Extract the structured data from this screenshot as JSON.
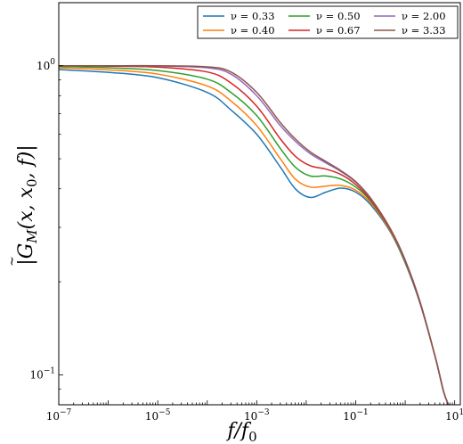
{
  "chart_data": {
    "type": "line",
    "xscale": "log",
    "yscale": "log",
    "xlim": [
      1e-07,
      13
    ],
    "ylim": [
      0.08,
      1.6
    ],
    "xlabel": "f/f_0",
    "ylabel": "|G̃_M(x, x_0, f)|",
    "x_ticks": [
      {
        "value": 1e-07,
        "mant": "10",
        "exp": "−7"
      },
      {
        "value": 1e-05,
        "mant": "10",
        "exp": "−5"
      },
      {
        "value": 0.001,
        "mant": "10",
        "exp": "−3"
      },
      {
        "value": 0.1,
        "mant": "10",
        "exp": "−1"
      },
      {
        "value": 10,
        "mant": "10",
        "exp": "1"
      }
    ],
    "y_ticks": [
      {
        "value": 1,
        "mant": "10",
        "exp": "0"
      },
      {
        "value": 0.1,
        "mant": "10",
        "exp": "−1"
      }
    ],
    "legend_position": "top-right",
    "grid": false,
    "series": [
      {
        "name": "ν = 0.33",
        "color": "#1f77b4",
        "points": [
          [
            1e-07,
            0.972
          ],
          [
            1e-06,
            0.952
          ],
          [
            1e-05,
            0.915
          ],
          [
            0.0001,
            0.82
          ],
          [
            0.0003,
            0.72
          ],
          [
            0.001,
            0.6
          ],
          [
            0.003,
            0.47
          ],
          [
            0.006,
            0.4
          ],
          [
            0.012,
            0.375
          ],
          [
            0.025,
            0.39
          ],
          [
            0.05,
            0.402
          ],
          [
            0.1,
            0.39
          ],
          [
            0.2,
            0.355
          ],
          [
            0.5,
            0.29
          ],
          [
            1,
            0.23
          ],
          [
            2,
            0.17
          ],
          [
            4,
            0.115
          ],
          [
            6,
            0.088
          ],
          [
            7.5,
            0.08
          ]
        ]
      },
      {
        "name": "ν = 0.40",
        "color": "#ff7f0e",
        "points": [
          [
            1e-07,
            0.985
          ],
          [
            1e-06,
            0.97
          ],
          [
            1e-05,
            0.94
          ],
          [
            0.0001,
            0.86
          ],
          [
            0.0003,
            0.77
          ],
          [
            0.001,
            0.64
          ],
          [
            0.003,
            0.5
          ],
          [
            0.006,
            0.43
          ],
          [
            0.012,
            0.405
          ],
          [
            0.025,
            0.408
          ],
          [
            0.05,
            0.41
          ],
          [
            0.1,
            0.396
          ],
          [
            0.2,
            0.36
          ],
          [
            0.5,
            0.292
          ],
          [
            1,
            0.232
          ],
          [
            2,
            0.171
          ],
          [
            4,
            0.115
          ],
          [
            6,
            0.088
          ],
          [
            7.5,
            0.08
          ]
        ]
      },
      {
        "name": "ν = 0.50",
        "color": "#2ca02c",
        "points": [
          [
            1e-07,
            0.995
          ],
          [
            1e-06,
            0.985
          ],
          [
            1e-05,
            0.965
          ],
          [
            0.0001,
            0.905
          ],
          [
            0.0003,
            0.82
          ],
          [
            0.001,
            0.69
          ],
          [
            0.003,
            0.54
          ],
          [
            0.006,
            0.47
          ],
          [
            0.012,
            0.44
          ],
          [
            0.025,
            0.44
          ],
          [
            0.05,
            0.43
          ],
          [
            0.1,
            0.405
          ],
          [
            0.2,
            0.365
          ],
          [
            0.5,
            0.294
          ],
          [
            1,
            0.233
          ],
          [
            2,
            0.171
          ],
          [
            4,
            0.115
          ],
          [
            6,
            0.088
          ],
          [
            7.5,
            0.08
          ]
        ]
      },
      {
        "name": "ν = 0.67",
        "color": "#d62728",
        "points": [
          [
            1e-07,
            1.0
          ],
          [
            1e-06,
            0.997
          ],
          [
            1e-05,
            0.99
          ],
          [
            0.0001,
            0.955
          ],
          [
            0.0003,
            0.88
          ],
          [
            0.001,
            0.74
          ],
          [
            0.003,
            0.58
          ],
          [
            0.006,
            0.51
          ],
          [
            0.012,
            0.475
          ],
          [
            0.025,
            0.463
          ],
          [
            0.05,
            0.445
          ],
          [
            0.1,
            0.413
          ],
          [
            0.2,
            0.368
          ],
          [
            0.5,
            0.295
          ],
          [
            1,
            0.234
          ],
          [
            2,
            0.171
          ],
          [
            4,
            0.115
          ],
          [
            6,
            0.088
          ],
          [
            7.5,
            0.08
          ]
        ]
      },
      {
        "name": "ν = 2.00",
        "color": "#9467bd",
        "points": [
          [
            1e-07,
            1.0
          ],
          [
            1e-06,
            1.0
          ],
          [
            1e-05,
            0.998
          ],
          [
            0.0001,
            0.985
          ],
          [
            0.0003,
            0.94
          ],
          [
            0.001,
            0.8
          ],
          [
            0.003,
            0.64
          ],
          [
            0.006,
            0.57
          ],
          [
            0.012,
            0.52
          ],
          [
            0.025,
            0.485
          ],
          [
            0.05,
            0.455
          ],
          [
            0.1,
            0.42
          ],
          [
            0.2,
            0.372
          ],
          [
            0.5,
            0.297
          ],
          [
            1,
            0.235
          ],
          [
            2,
            0.172
          ],
          [
            4,
            0.115
          ],
          [
            6,
            0.088
          ],
          [
            7.5,
            0.08
          ]
        ]
      },
      {
        "name": "ν = 3.33",
        "color": "#8c564b",
        "points": [
          [
            1e-07,
            1.0
          ],
          [
            1e-06,
            1.0
          ],
          [
            1e-05,
            1.0
          ],
          [
            0.0001,
            0.992
          ],
          [
            0.0003,
            0.955
          ],
          [
            0.001,
            0.82
          ],
          [
            0.003,
            0.655
          ],
          [
            0.006,
            0.58
          ],
          [
            0.012,
            0.527
          ],
          [
            0.025,
            0.49
          ],
          [
            0.05,
            0.458
          ],
          [
            0.1,
            0.422
          ],
          [
            0.2,
            0.373
          ],
          [
            0.5,
            0.297
          ],
          [
            1,
            0.235
          ],
          [
            2,
            0.172
          ],
          [
            4,
            0.115
          ],
          [
            6,
            0.088
          ],
          [
            7.5,
            0.08
          ]
        ]
      }
    ]
  }
}
